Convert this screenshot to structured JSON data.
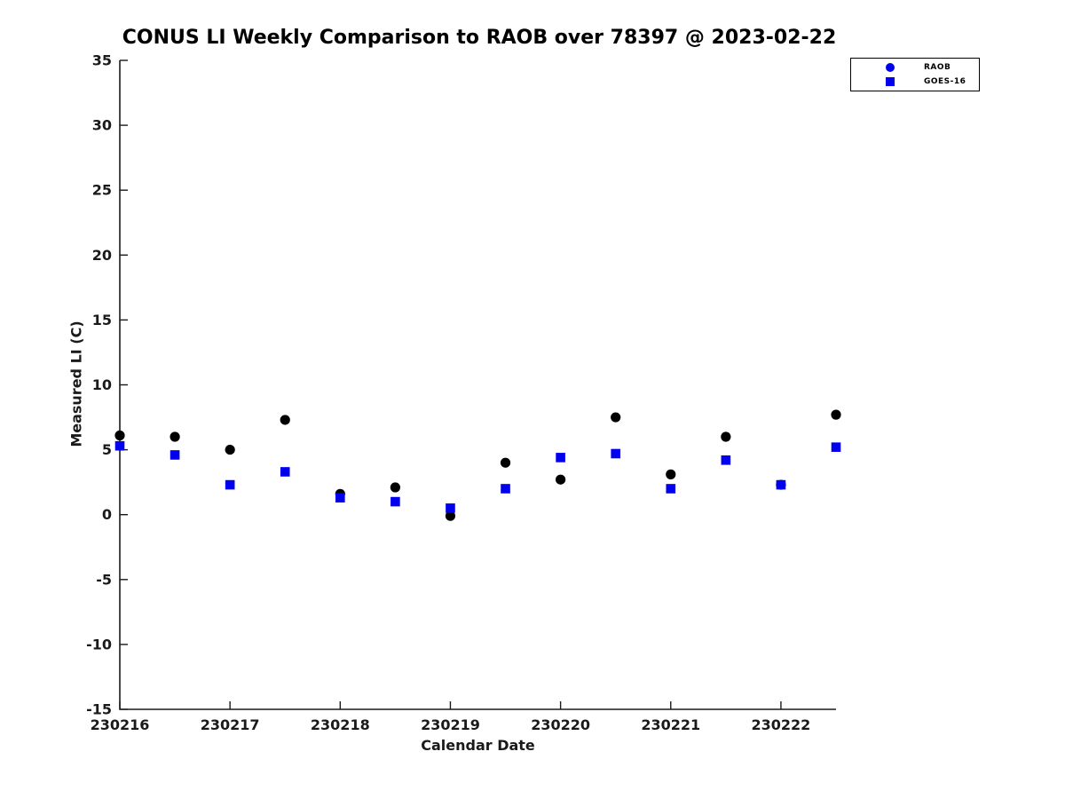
{
  "title": "CONUS LI Weekly Comparison to RAOB over 78397 @ 2023-02-22",
  "axes": {
    "xlabel": "Calendar Date",
    "ylabel": "Measured LI (C)",
    "x_tick_labels": [
      "230216",
      "230217",
      "230218",
      "230219",
      "230220",
      "230221",
      "230222"
    ],
    "y_tick_values": [
      35,
      30,
      25,
      20,
      15,
      10,
      5,
      0,
      -5,
      -10,
      -15
    ]
  },
  "legend": {
    "items": [
      {
        "label": "RAOB",
        "marker": "circle",
        "color": "#0000ee"
      },
      {
        "label": "GOES-16",
        "marker": "square",
        "color": "#0000ee"
      }
    ]
  },
  "colors": {
    "raob_marker": "#000000",
    "goes16_marker": "#0000ee",
    "axis": "#1a1a1a",
    "text": "#1a1a1a",
    "background": "#ffffff"
  },
  "chart_data": {
    "type": "scatter",
    "title": "CONUS LI Weekly Comparison to RAOB over 78397 @ 2023-02-22",
    "xlabel": "Calendar Date",
    "ylabel": "Measured LI (C)",
    "xlim": [
      230216,
      230222.5
    ],
    "ylim": [
      -15,
      35
    ],
    "grid": false,
    "legend_position": "top-right",
    "x_ticks": [
      230216,
      230217,
      230218,
      230219,
      230220,
      230221,
      230222
    ],
    "y_ticks": [
      35,
      30,
      25,
      20,
      15,
      10,
      5,
      0,
      -5,
      -10,
      -15
    ],
    "x": [
      230216,
      230216.5,
      230217,
      230217.5,
      230218,
      230218.5,
      230219,
      230219.5,
      230220,
      230220.5,
      230221,
      230221.5,
      230222,
      230222.5
    ],
    "series": [
      {
        "name": "RAOB",
        "marker": "circle",
        "color": "#000000",
        "values": [
          6.1,
          6.0,
          5.0,
          7.3,
          1.6,
          2.1,
          -0.1,
          4.0,
          2.7,
          7.5,
          3.1,
          6.0,
          2.3,
          7.7
        ]
      },
      {
        "name": "GOES-16",
        "marker": "square",
        "color": "#0000ee",
        "values": [
          5.3,
          4.6,
          2.3,
          3.3,
          1.3,
          1.0,
          0.5,
          2.0,
          4.4,
          4.7,
          2.0,
          4.2,
          2.3,
          5.2
        ]
      }
    ]
  }
}
